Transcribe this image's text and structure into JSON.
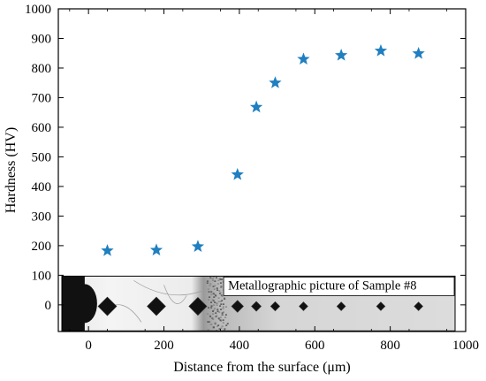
{
  "chart_data": {
    "type": "scatter",
    "xlabel": "Distance from the surface (μm)",
    "ylabel": "Hardness (HV)",
    "xlim": [
      -80,
      1000
    ],
    "ylim": [
      -90,
      1000
    ],
    "xticks": [
      0,
      200,
      400,
      600,
      800,
      1000
    ],
    "yticks": [
      0,
      100,
      200,
      300,
      400,
      500,
      600,
      700,
      800,
      900,
      1000
    ],
    "marker": "star",
    "marker_color": "#1f7fc0",
    "grid": false,
    "series": [
      {
        "x": [
          50,
          180,
          290,
          395,
          445,
          495,
          570,
          670,
          775,
          875
        ],
        "y": [
          183,
          185,
          197,
          440,
          668,
          750,
          830,
          843,
          858,
          849
        ]
      }
    ],
    "inset": {
      "caption": "Metallographic picture of Sample #8",
      "description": "micrograph of hardness indentations"
    }
  }
}
